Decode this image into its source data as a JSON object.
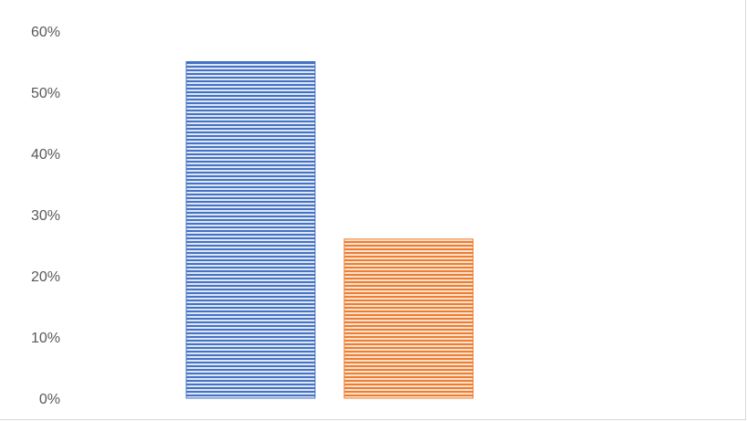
{
  "chart_data": {
    "type": "bar",
    "title": "",
    "xlabel": "",
    "ylabel": "",
    "ylim": [
      0,
      0.6
    ],
    "yticks": [
      0,
      0.1,
      0.2,
      0.3,
      0.4,
      0.5,
      0.6
    ],
    "ytick_labels": [
      "0%",
      "10%",
      "20%",
      "30%",
      "40%",
      "50%",
      "60%"
    ],
    "grid": false,
    "legend": "none",
    "categories": [
      "",
      ""
    ],
    "values": [
      0.55,
      0.26
    ],
    "colors": [
      "#4472c4",
      "#ed7d31"
    ],
    "fill_pattern": "horizontal-stripes"
  }
}
